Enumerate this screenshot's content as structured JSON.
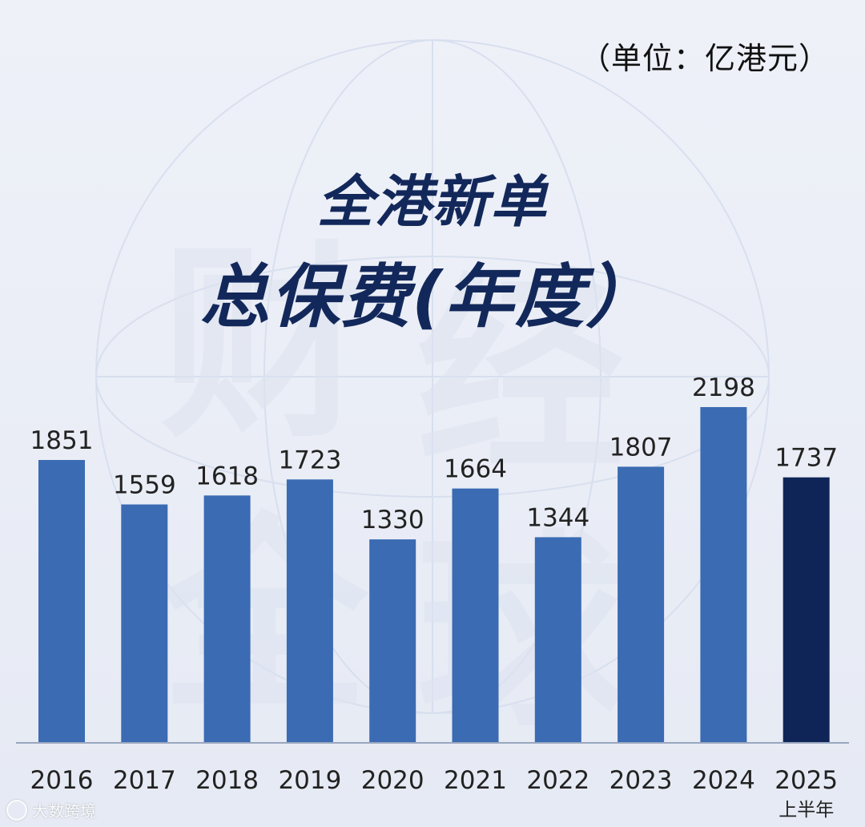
{
  "unit_label": "（单位：亿港元）",
  "title_line1": "全港新单",
  "title_line2": "总保费(年度）",
  "watermark_logo_text": "大数跨境",
  "colors": {
    "bar": "#3a6bb3",
    "bar_highlight": "#0f2557",
    "title": "#13285a",
    "axis": "#9aa6bf",
    "text": "#222222"
  },
  "chart_data": {
    "type": "bar",
    "title": "全港新单总保费(年度）",
    "unit": "（单位：亿港元）",
    "categories": [
      "2016",
      "2017",
      "2018",
      "2019",
      "2020",
      "2021",
      "2022",
      "2023",
      "2024",
      "2025"
    ],
    "category_sublabels": [
      "",
      "",
      "",
      "",
      "",
      "",
      "",
      "",
      "",
      "上半年"
    ],
    "values": [
      1851,
      1559,
      1618,
      1723,
      1330,
      1664,
      1344,
      1807,
      2198,
      1737
    ],
    "highlight_index": 9,
    "ylim": [
      0,
      2200
    ],
    "grid": false,
    "legend": "none",
    "xlabel": "",
    "ylabel": ""
  }
}
